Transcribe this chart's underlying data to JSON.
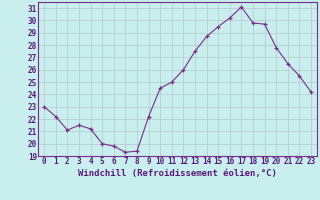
{
  "x": [
    0,
    1,
    2,
    3,
    4,
    5,
    6,
    7,
    8,
    9,
    10,
    11,
    12,
    13,
    14,
    15,
    16,
    17,
    18,
    19,
    20,
    21,
    22,
    23
  ],
  "y": [
    23.0,
    22.2,
    21.1,
    21.5,
    21.2,
    20.0,
    19.8,
    19.3,
    19.4,
    22.2,
    24.5,
    25.0,
    26.0,
    27.5,
    28.7,
    29.5,
    30.2,
    31.1,
    29.8,
    29.7,
    27.8,
    26.5,
    25.5,
    24.2
  ],
  "xlabel": "Windchill (Refroidissement éolien,°C)",
  "line_color": "#7b2d8b",
  "marker": "+",
  "bg_color": "#c8eeee",
  "grid_color": "#b0c8c8",
  "ylim": [
    19,
    31.5
  ],
  "xlim": [
    -0.5,
    23.5
  ],
  "yticks": [
    19,
    20,
    21,
    22,
    23,
    24,
    25,
    26,
    27,
    28,
    29,
    30,
    31
  ],
  "xticks": [
    0,
    1,
    2,
    3,
    4,
    5,
    6,
    7,
    8,
    9,
    10,
    11,
    12,
    13,
    14,
    15,
    16,
    17,
    18,
    19,
    20,
    21,
    22,
    23
  ],
  "xtick_labels": [
    "0",
    "1",
    "2",
    "3",
    "4",
    "5",
    "6",
    "7",
    "8",
    "9",
    "10",
    "11",
    "12",
    "13",
    "14",
    "15",
    "16",
    "17",
    "18",
    "19",
    "20",
    "21",
    "22",
    "23"
  ],
  "tick_fontsize": 5.5,
  "xlabel_fontsize": 6.5,
  "marker_size": 3,
  "linewidth": 0.8
}
